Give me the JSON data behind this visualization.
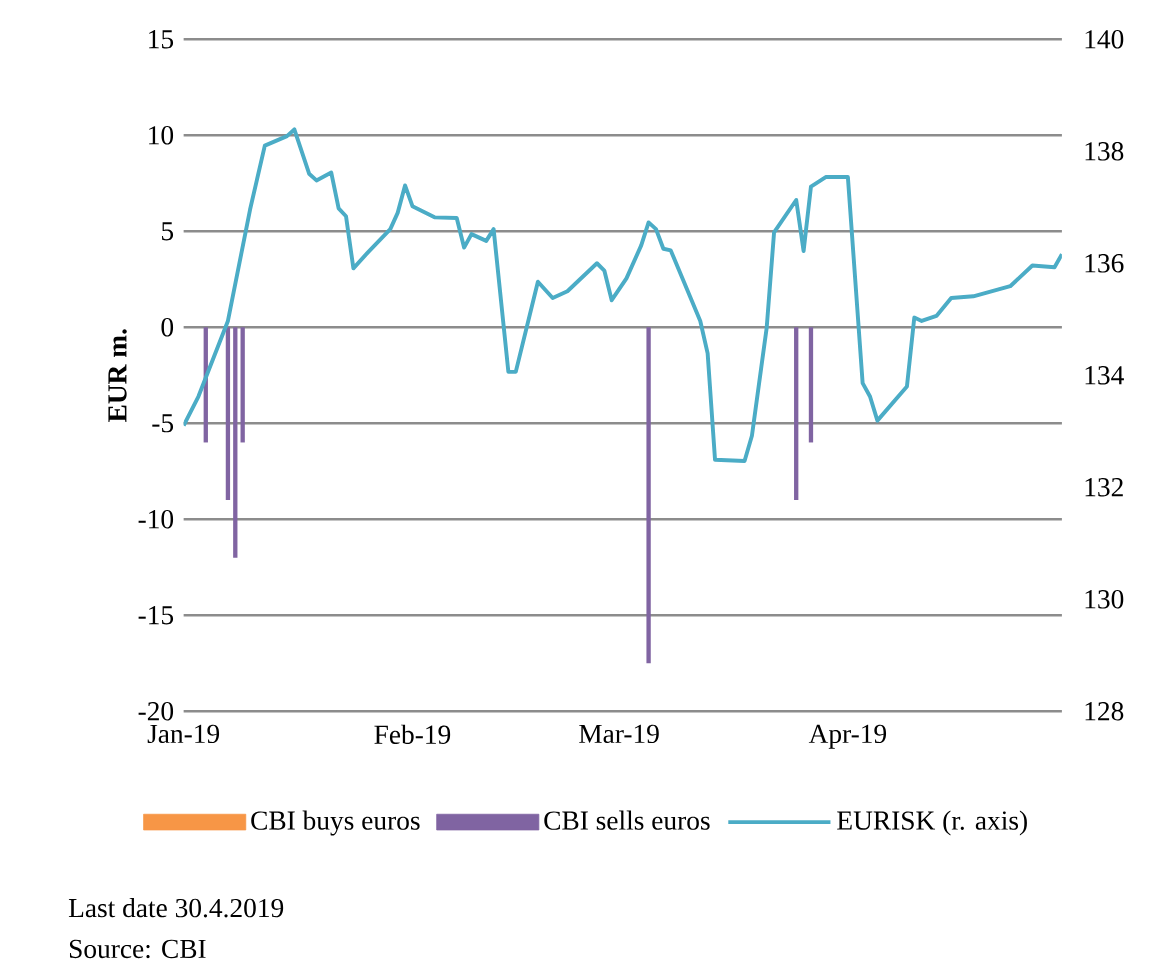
{
  "chart_data": {
    "type": "bar",
    "ylabel": "EUR m.",
    "legend": "bottom",
    "grid": "y",
    "xlim": [
      "2019-01-01",
      "2019-04-30"
    ],
    "xticks": [
      {
        "value": "2019-01-01",
        "label": "Jan-19"
      },
      {
        "value": "2019-02-01",
        "label": "Feb-19"
      },
      {
        "value": "2019-03-01",
        "label": "Mar-19"
      },
      {
        "value": "2019-04-01",
        "label": "Apr-19"
      }
    ],
    "ylim": [
      -20,
      15
    ],
    "yticks": [
      -20,
      -15,
      -10,
      -5,
      0,
      5,
      10,
      15
    ],
    "y2lim": [
      128,
      140
    ],
    "y2ticks": [
      128,
      130,
      132,
      134,
      136,
      138,
      140
    ],
    "annotations": [
      "Last date 30.4.2019",
      "Source: CBI"
    ],
    "series": [
      {
        "name": "CBI buys euros",
        "color": "#f79646"
      },
      {
        "name": "CBI sells euros",
        "color": "#8064a2",
        "x": [
          "2019-01-04",
          "2019-01-07",
          "2019-01-08",
          "2019-01-09",
          "2019-03-05",
          "2019-03-25",
          "2019-03-27"
        ],
        "values": [
          -6,
          -9,
          -12,
          -6,
          -17.5,
          -9,
          -6
        ]
      },
      {
        "name": "EURISK (r. axis)",
        "type": "line",
        "axis": "y2",
        "color": "#4bacc6",
        "x": [
          "2019-01-01",
          "2019-01-03",
          "2019-01-07",
          "2019-01-10",
          "2019-01-12",
          "2019-01-15",
          "2019-01-16",
          "2019-01-18",
          "2019-01-19",
          "2019-01-21",
          "2019-01-22",
          "2019-01-23",
          "2019-01-24",
          "2019-01-26",
          "2019-01-29",
          "2019-01-30",
          "2019-01-31",
          "2019-02-01",
          "2019-02-04",
          "2019-02-07",
          "2019-02-08",
          "2019-02-09",
          "2019-02-11",
          "2019-02-12",
          "2019-02-14",
          "2019-02-15",
          "2019-02-18",
          "2019-02-20",
          "2019-02-22",
          "2019-02-26",
          "2019-02-27",
          "2019-02-28",
          "2019-03-02",
          "2019-03-04",
          "2019-03-05",
          "2019-03-06",
          "2019-03-07",
          "2019-03-08",
          "2019-03-12",
          "2019-03-13",
          "2019-03-14",
          "2019-03-18",
          "2019-03-19",
          "2019-03-21",
          "2019-03-22",
          "2019-03-25",
          "2019-03-26",
          "2019-03-27",
          "2019-03-29",
          "2019-04-01",
          "2019-04-03",
          "2019-04-04",
          "2019-04-05",
          "2019-04-09",
          "2019-04-10",
          "2019-04-11",
          "2019-04-13",
          "2019-04-15",
          "2019-04-18",
          "2019-04-23",
          "2019-04-26",
          "2019-04-29",
          "2019-04-30"
        ],
        "values": [
          133.1,
          133.62,
          134.97,
          136.96,
          138.1,
          138.27,
          138.39,
          137.6,
          137.48,
          137.62,
          136.98,
          136.84,
          135.91,
          136.2,
          136.61,
          136.9,
          137.39,
          137.02,
          136.82,
          136.81,
          136.28,
          136.52,
          136.4,
          136.61,
          134.06,
          134.06,
          135.67,
          135.38,
          135.5,
          136.0,
          135.87,
          135.34,
          135.73,
          136.32,
          136.73,
          136.61,
          136.26,
          136.23,
          134.97,
          134.39,
          132.49,
          132.47,
          132.92,
          134.85,
          136.55,
          137.13,
          136.22,
          137.37,
          137.54,
          137.54,
          133.86,
          133.62,
          133.19,
          133.8,
          135.03,
          134.97,
          135.06,
          135.38,
          135.41,
          135.59,
          135.96,
          135.93,
          136.16
        ]
      }
    ]
  }
}
